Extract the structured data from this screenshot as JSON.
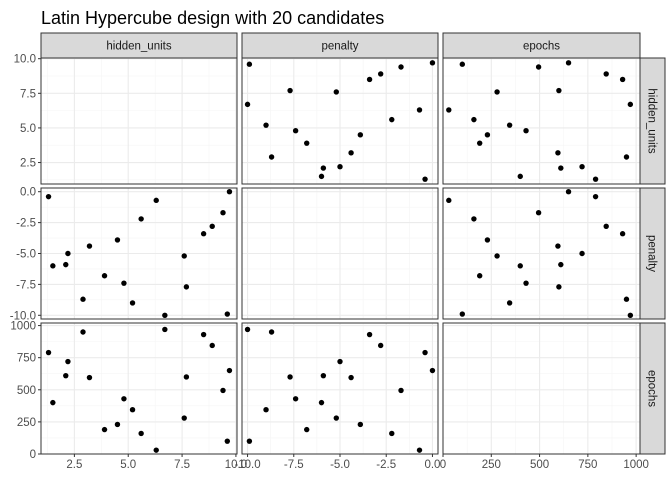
{
  "colors": {
    "strip_fill": "#d9d9d9",
    "strip_border": "#333333",
    "panel_border": "#333333",
    "grid_major": "#ebebeb",
    "grid_minor": "#f5f5f5",
    "point": "#000000",
    "tick": "#333333",
    "text": "#4d4d4d"
  },
  "chart_data": {
    "type": "scatter",
    "title": "Latin Hypercube design with 20 candidates",
    "variables": [
      "hidden_units",
      "penalty",
      "epochs"
    ],
    "ranges": {
      "hidden_units": [
        0.95,
        10.05
      ],
      "penalty": [
        -10.3,
        0.3
      ],
      "epochs": [
        0,
        1020
      ]
    },
    "ticks": {
      "hidden_units": {
        "values": [
          2.5,
          5.0,
          7.5,
          10.0
        ],
        "labels": [
          "2.5",
          "5.0",
          "7.5",
          "10.0"
        ],
        "minor": [
          1.25,
          3.75,
          6.25,
          8.75
        ]
      },
      "penalty": {
        "values": [
          -10.0,
          -7.5,
          -5.0,
          -2.5,
          0.0
        ],
        "labels": [
          "-10.0",
          "-7.5",
          "-5.0",
          "-2.5",
          "0.0"
        ],
        "minor": [
          -8.75,
          -6.25,
          -3.75,
          -1.25
        ]
      },
      "epochs": {
        "values": [
          0,
          250,
          500,
          750,
          1000
        ],
        "labels": [
          "0",
          "250",
          "500",
          "750",
          "1000"
        ],
        "minor": [
          125,
          375,
          625,
          875
        ]
      }
    },
    "points": [
      {
        "hidden_units": 9.6,
        "penalty": -9.9,
        "epochs": 100
      },
      {
        "hidden_units": 9.4,
        "penalty": -1.7,
        "epochs": 495
      },
      {
        "hidden_units": 6.3,
        "penalty": -0.7,
        "epochs": 30
      },
      {
        "hidden_units": 9.7,
        "penalty": 0.0,
        "epochs": 650
      },
      {
        "hidden_units": 1.3,
        "penalty": -0.4,
        "epochs": 790
      },
      {
        "hidden_units": 8.9,
        "penalty": -2.8,
        "epochs": 845
      },
      {
        "hidden_units": 3.2,
        "penalty": -4.4,
        "epochs": 595
      },
      {
        "hidden_units": 1.5,
        "penalty": -6.0,
        "epochs": 400
      },
      {
        "hidden_units": 5.6,
        "penalty": -2.2,
        "epochs": 160
      },
      {
        "hidden_units": 5.2,
        "penalty": -9.0,
        "epochs": 345
      },
      {
        "hidden_units": 2.2,
        "penalty": -5.0,
        "epochs": 720
      },
      {
        "hidden_units": 2.9,
        "penalty": -8.7,
        "epochs": 950
      },
      {
        "hidden_units": 4.5,
        "penalty": -3.9,
        "epochs": 230
      },
      {
        "hidden_units": 2.1,
        "penalty": -5.9,
        "epochs": 610
      },
      {
        "hidden_units": 8.5,
        "penalty": -3.4,
        "epochs": 930
      },
      {
        "hidden_units": 6.7,
        "penalty": -10.0,
        "epochs": 970
      },
      {
        "hidden_units": 7.6,
        "penalty": -5.2,
        "epochs": 280
      },
      {
        "hidden_units": 4.8,
        "penalty": -7.4,
        "epochs": 430
      },
      {
        "hidden_units": 3.9,
        "penalty": -6.8,
        "epochs": 190
      },
      {
        "hidden_units": 7.7,
        "penalty": -7.7,
        "epochs": 600
      }
    ]
  }
}
